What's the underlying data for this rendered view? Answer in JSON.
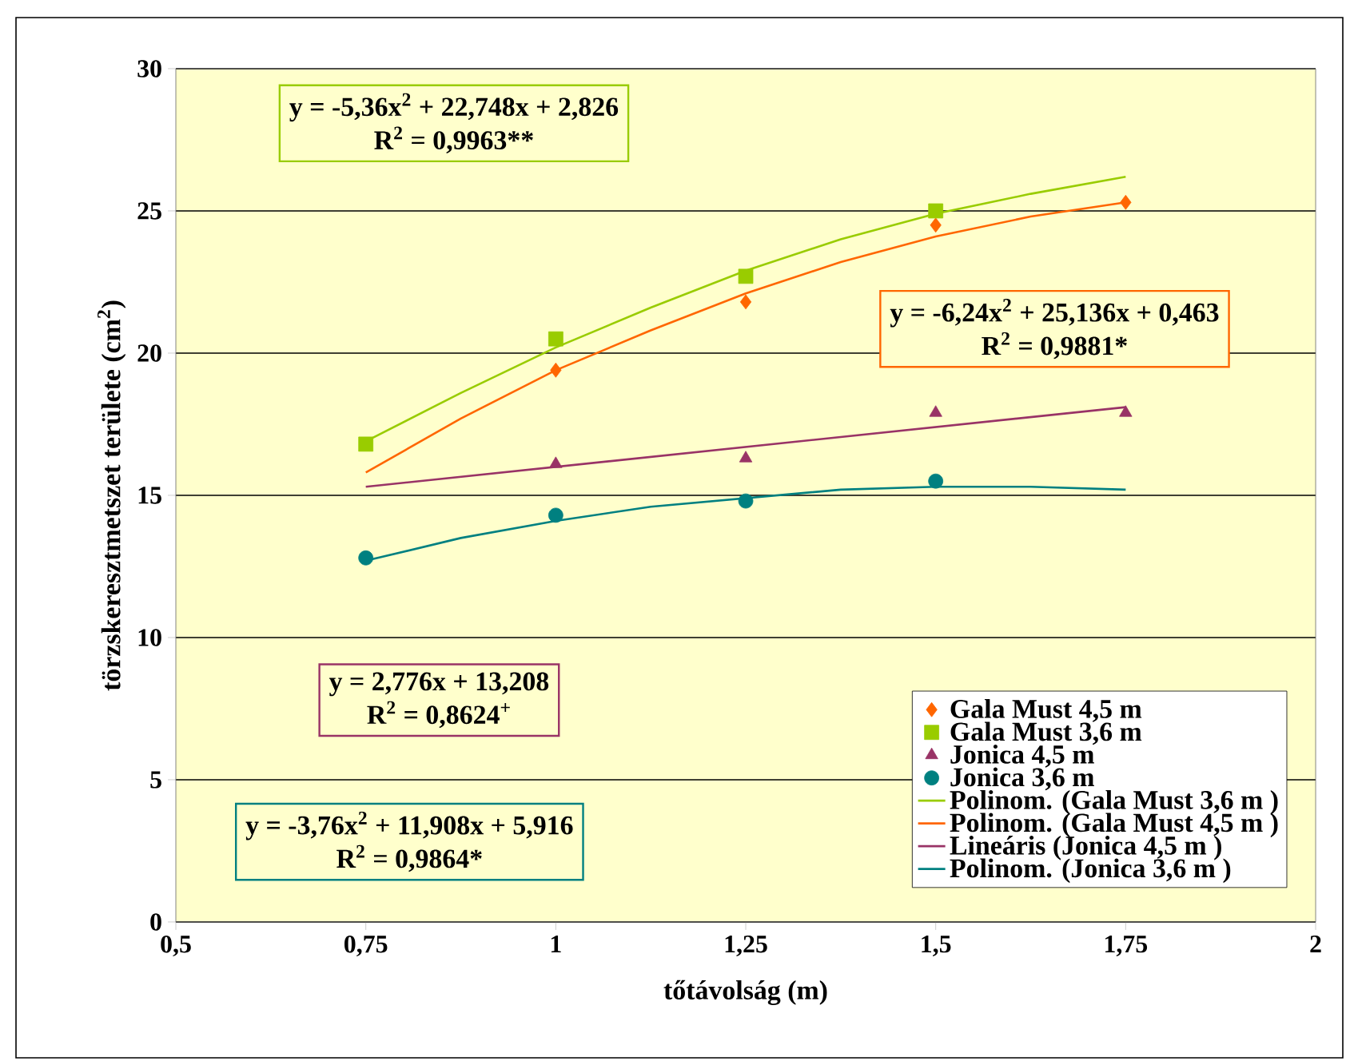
{
  "chart_data": {
    "type": "scatter",
    "xlabel": "tőtávolság (m)",
    "ylabel": "törzskeresztmetszet területe (cm$^{2}$)",
    "xlim": [
      0.5,
      2
    ],
    "ylim": [
      0,
      30
    ],
    "xticks": [
      {
        "value": 0.5,
        "label": "0,5"
      },
      {
        "value": 0.75,
        "label": "0,75"
      },
      {
        "value": 1,
        "label": "1"
      },
      {
        "value": 1.25,
        "label": "1,25"
      },
      {
        "value": 1.5,
        "label": "1,5"
      },
      {
        "value": 1.75,
        "label": "1,75"
      },
      {
        "value": 2,
        "label": "2"
      }
    ],
    "yticks": [
      0,
      5,
      10,
      15,
      20,
      25,
      30
    ],
    "grid": "y",
    "legend": "bottom right",
    "x": [
      0.75,
      1,
      1.25,
      1.5,
      1.75
    ],
    "series": [
      {
        "name": "Gala Must 4,5 m",
        "marker": "diamond",
        "color": "#ff6600",
        "values": [
          null,
          19.4,
          21.8,
          24.5,
          25.3
        ]
      },
      {
        "name": "Gala Must 3,6 m",
        "marker": "square",
        "color": "#99cc00",
        "values": [
          16.8,
          20.5,
          22.7,
          25.0,
          null
        ]
      },
      {
        "name": "Jonica 4,5 m",
        "marker": "triangle",
        "color": "#993366",
        "values": [
          null,
          16.1,
          16.3,
          17.9,
          17.9
        ]
      },
      {
        "name": "Jonica 3,6 m",
        "marker": "circle",
        "color": "#008080",
        "values": [
          12.8,
          14.3,
          14.8,
          15.5,
          null
        ]
      },
      {
        "name": "Polinom. (Gala Must 3,6 m )",
        "type": "line",
        "marker": "none",
        "color": "#99cc00",
        "x": [
          0.75,
          0.875,
          1,
          1.125,
          1.25,
          1.375,
          1.5,
          1.625,
          1.75
        ],
        "values": [
          16.9,
          18.6,
          20.2,
          21.6,
          22.9,
          24.0,
          24.9,
          25.6,
          26.2
        ]
      },
      {
        "name": "Polinom. (Gala Must 4,5 m )",
        "type": "line",
        "marker": "none",
        "color": "#ff6600",
        "x": [
          0.75,
          0.875,
          1,
          1.125,
          1.25,
          1.375,
          1.5,
          1.625,
          1.75
        ],
        "values": [
          15.8,
          17.7,
          19.4,
          20.8,
          22.1,
          23.2,
          24.1,
          24.8,
          25.3
        ]
      },
      {
        "name": "Lineáris (Jonica 4,5 m )",
        "type": "line",
        "marker": "none",
        "color": "#993366",
        "x": [
          0.75,
          1.75
        ],
        "values": [
          15.3,
          18.1
        ]
      },
      {
        "name": "Polinom. (Jonica 3,6 m )",
        "type": "line",
        "marker": "none",
        "color": "#008080",
        "x": [
          0.75,
          0.875,
          1,
          1.125,
          1.25,
          1.375,
          1.5,
          1.625,
          1.75
        ],
        "values": [
          12.7,
          13.5,
          14.1,
          14.6,
          14.9,
          15.2,
          15.3,
          15.3,
          15.2
        ]
      }
    ],
    "annotations": [
      "y = -5,36x$^{2}$ + 22,748x + 2,826",
      "R$^{2}$ = 0,9963**",
      "y = -6,24x$^{2}$ + 25,136x + 0,463",
      "R$^{2}$ = 0,9881*",
      "y = 2,776x + 13,208",
      "R$^{2}$ = 0,8624$^{+}$",
      "y = -3,76x$^{2}$ + 11,908x + 5,916",
      "R$^{2}$ = 0,9864*"
    ]
  }
}
